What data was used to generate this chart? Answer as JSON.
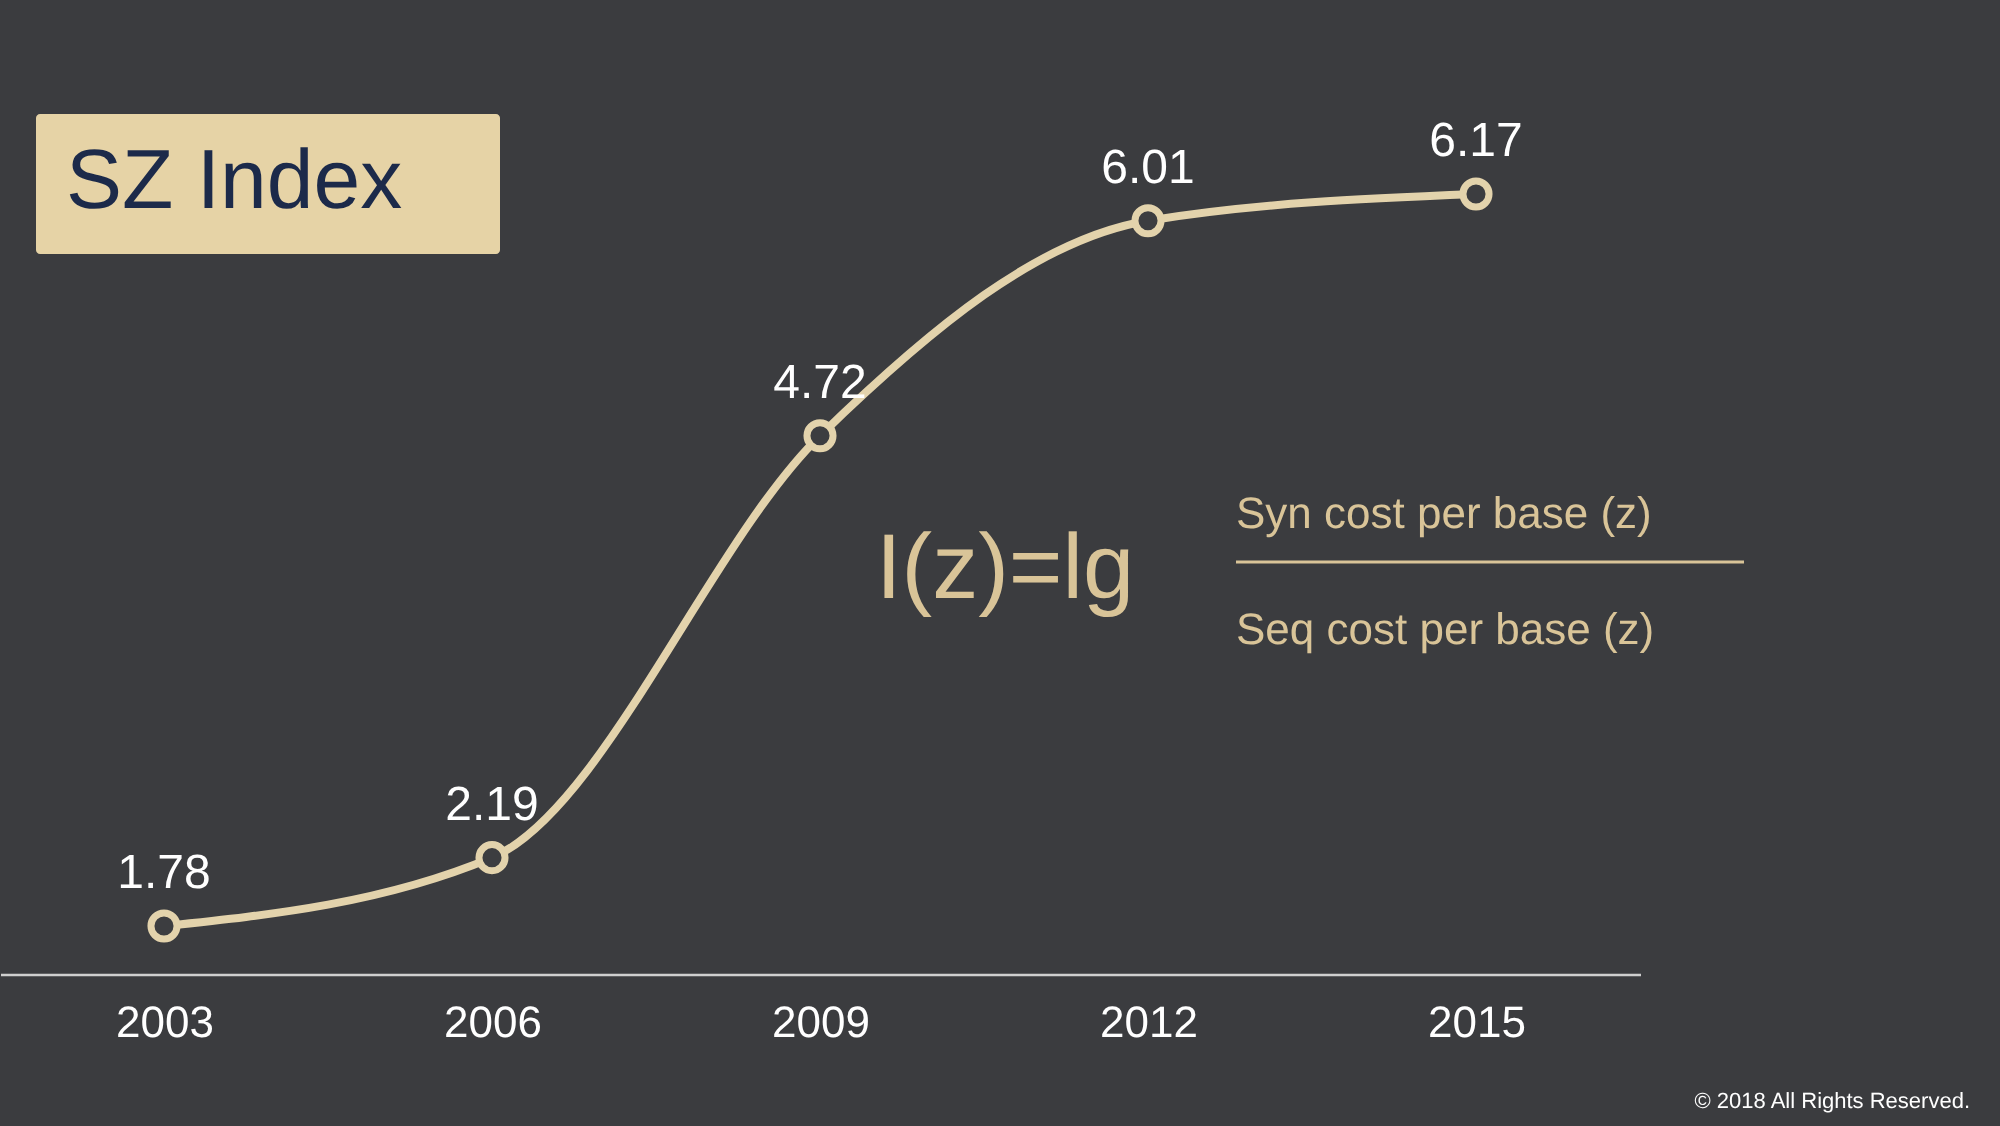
{
  "chart_data": {
    "type": "line",
    "title": "SZ Index",
    "categories": [
      "2003",
      "2006",
      "2009",
      "2012",
      "2015"
    ],
    "series": [
      {
        "color": "#e3d3ac",
        "values": [
          1.78,
          2.19,
          4.72,
          6.01,
          6.17
        ]
      }
    ],
    "data_labels": true,
    "marker": "circle",
    "line_style": "solid",
    "grid": false,
    "legend": false,
    "annotations": [
      "I(z)=lg",
      "Syn cost per base (z)",
      "Seq cost per base (z)",
      "© 2018 All Rights Reserved."
    ]
  }
}
